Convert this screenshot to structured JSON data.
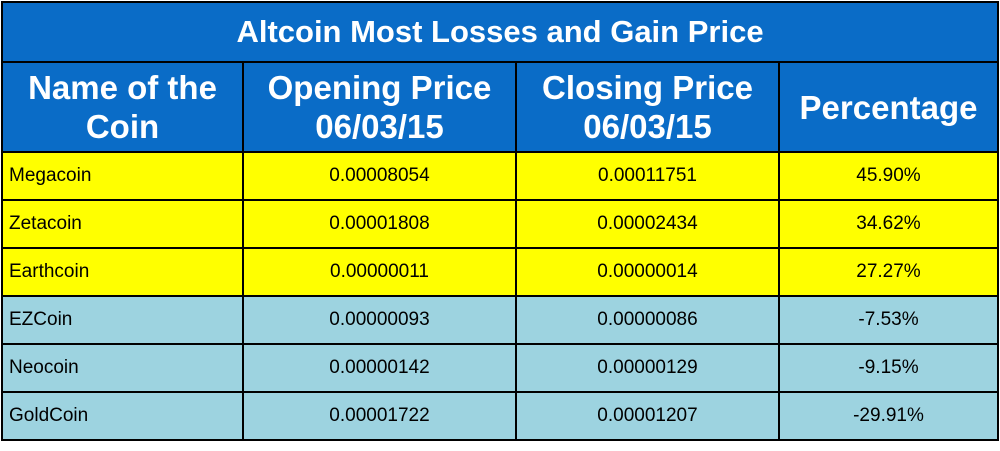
{
  "table": {
    "title": "Altcoin Most Losses and Gain Price",
    "header": [
      "Name of the\nCoin",
      "Opening Price\n06/03/15",
      "Closing Price\n06/03/15",
      "Percentage"
    ],
    "rows": [
      [
        "Megacoin",
        "0.00008054",
        "0.00011751",
        "45.90%"
      ],
      [
        "Zetacoin",
        "0.00001808",
        "0.00002434",
        "34.62%"
      ],
      [
        "Earthcoin",
        "0.00000011",
        "0.00000014",
        "27.27%"
      ],
      [
        "EZCoin",
        "0.00000093",
        "0.00000086",
        "-7.53%"
      ],
      [
        "Neocoin",
        "0.00000142",
        "0.00000129",
        "-9.15%"
      ],
      [
        "GoldCoin",
        "0.00001722",
        "0.00001207",
        "-29.91%"
      ]
    ]
  }
}
